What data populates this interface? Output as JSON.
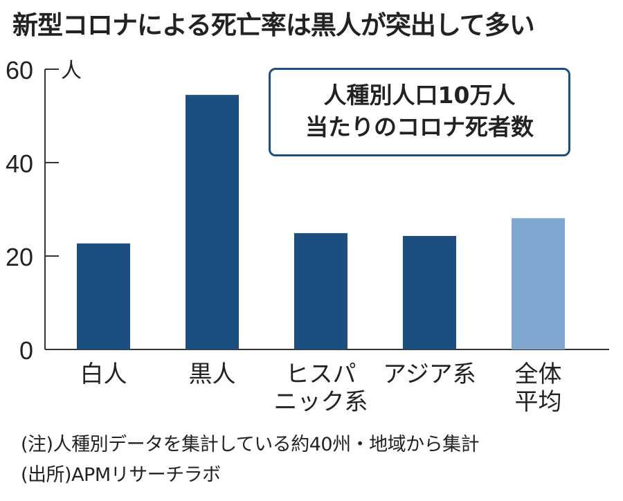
{
  "chart_data": {
    "type": "bar",
    "title": "新型コロナによる死亡率は黒人が突出して多い",
    "annotation": [
      "人種別人口10万人",
      "当たりのコロナ死者数"
    ],
    "ylabel": "人",
    "ylim": [
      0,
      60
    ],
    "yticks": [
      "0",
      "20",
      "40",
      "60"
    ],
    "categories": [
      [
        "白人"
      ],
      [
        "黒人"
      ],
      [
        "ヒスパ",
        "ニック系"
      ],
      [
        "アジア系"
      ],
      [
        "全体",
        "平均"
      ]
    ],
    "values": [
      22.7,
      54.5,
      24.9,
      24.3,
      28.1
    ],
    "colors": [
      "#1c4f80",
      "#1c4f80",
      "#1c4f80",
      "#1c4f80",
      "#7fa6cf"
    ],
    "grid": false
  },
  "notes": {
    "note": "(注)人種別データを集計している約40州・地域から集計",
    "source": "(出所)APMリサーチラボ"
  }
}
